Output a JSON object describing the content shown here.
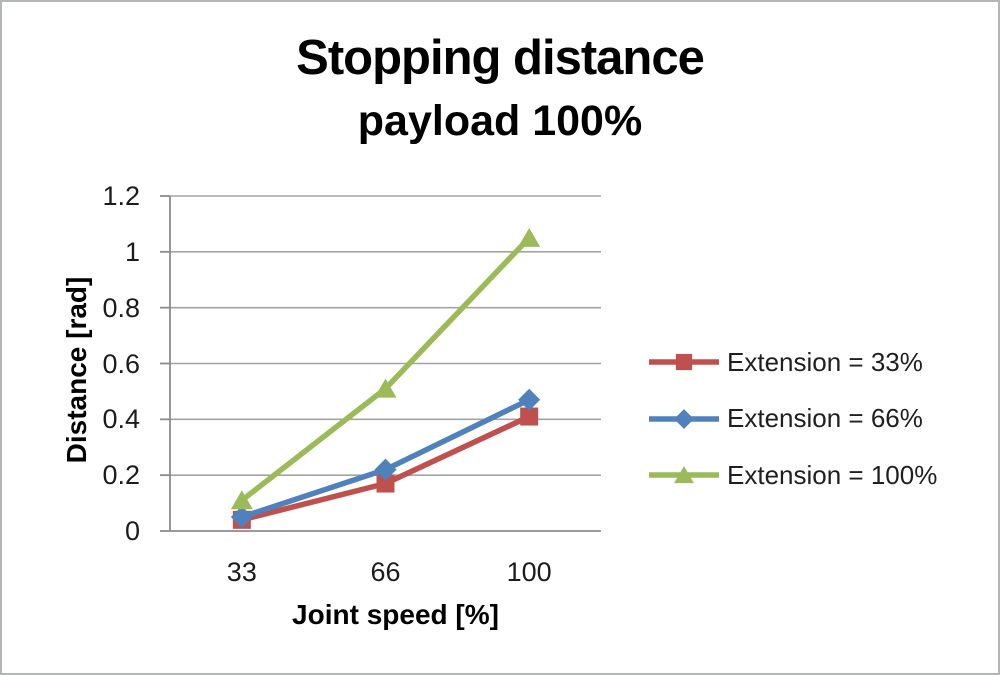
{
  "chart_data": {
    "type": "line",
    "title": "Stopping distance",
    "subtitle": "payload 100%",
    "xlabel": "Joint speed [%]",
    "ylabel": "Distance [rad]",
    "categories": [
      "33",
      "66",
      "100"
    ],
    "y_ticks": [
      "1.2",
      "1",
      "0.8",
      "0.6",
      "0.4",
      "0.2",
      "0"
    ],
    "ylim": [
      0,
      1.2
    ],
    "grid": true,
    "legend_position": "right",
    "series": [
      {
        "name": "Extension = 33%",
        "marker": "square",
        "color": "#C0504D",
        "values": [
          0.04,
          0.17,
          0.41
        ]
      },
      {
        "name": "Extension = 66%",
        "marker": "diamond",
        "color": "#4F81BD",
        "values": [
          0.05,
          0.22,
          0.47
        ]
      },
      {
        "name": "Extension = 100%",
        "marker": "triangle",
        "color": "#9BBB59",
        "values": [
          0.11,
          0.51,
          1.05
        ]
      }
    ],
    "colors": {
      "gridline": "#a3a3a3",
      "axis": "#8c8c8c",
      "tick_text": "#1c1c1c",
      "title_text": "#000000"
    }
  }
}
